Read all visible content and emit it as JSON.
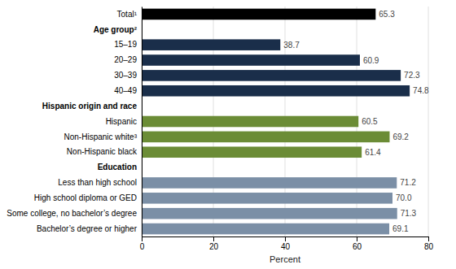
{
  "chart_data": {
    "type": "bar",
    "orientation": "horizontal",
    "categories": [
      "Total¹",
      "Age group²",
      "15–19",
      "20–29",
      "30–39",
      "40–49",
      "Hispanic origin and race",
      "Hispanic",
      "Non-Hispanic white³",
      "Non-Hispanic black",
      "Education",
      "Less than high school",
      "High school diploma or GED",
      "Some college, no bachelor’s degree",
      "Bachelor’s degree or higher"
    ],
    "values": [
      65.3,
      null,
      38.7,
      60.9,
      72.3,
      74.8,
      null,
      60.5,
      69.2,
      61.4,
      null,
      71.2,
      70.0,
      71.3,
      69.1
    ],
    "value_labels": [
      "65.3",
      null,
      "38.7",
      "60.9",
      "72.3",
      "74.8",
      null,
      "60.5",
      "69.2",
      "61.4",
      null,
      "71.2",
      "70.0",
      "71.3",
      "69.1"
    ],
    "colors": [
      "#000000",
      null,
      "#1a2e4a",
      "#1a2e4a",
      "#1a2e4a",
      "#1a2e4a",
      null,
      "#6b8c36",
      "#6b8c36",
      "#6b8c36",
      null,
      "#7b8fa6",
      "#7b8fa6",
      "#7b8fa6",
      "#7b8fa6"
    ],
    "xlim": [
      0,
      80
    ],
    "xticks": [
      0,
      20,
      40,
      60,
      80
    ],
    "xlabel": "Percent",
    "grid": true,
    "data_labels": true
  }
}
